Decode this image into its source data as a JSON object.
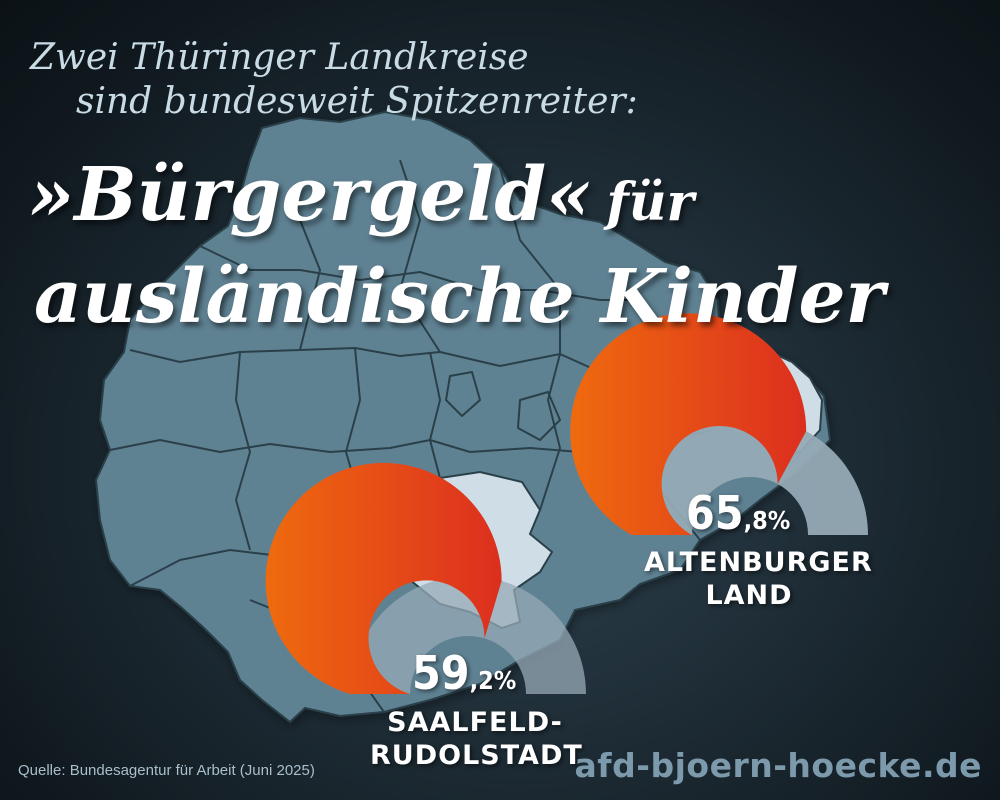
{
  "intro_line1": "Zwei Thüringer Landkreise",
  "intro_line2": "sind bundesweit Spitzenreiter:",
  "headline_part1": "»Bürgergeld«",
  "headline_part2": "für",
  "headline_line2": "ausländische Kinder",
  "source": "Quelle: Bundesagentur für Arbeit (Juni 2025)",
  "website": "afd-bjoern-hoecke.de",
  "colors": {
    "map_fill": "#5e8293",
    "map_highlight": "#cfdde6",
    "gauge_fill": "#e85a0c",
    "gauge_track": "#95aab5"
  },
  "chart_data": {
    "type": "gauge",
    "max": 100,
    "unit": "%",
    "series": [
      {
        "name": "ALTENBURGER LAND",
        "name_lines": [
          "ALTENBURGER",
          "LAND"
        ],
        "value": 65.8,
        "label_int": "65",
        "label_dec": ",8%"
      },
      {
        "name": "SAALFELD-RUDOLSTADT",
        "name_lines": [
          "SAALFELD-",
          "RUDOLSTADT"
        ],
        "value": 59.2,
        "label_int": "59",
        "label_dec": ",2%"
      }
    ]
  }
}
